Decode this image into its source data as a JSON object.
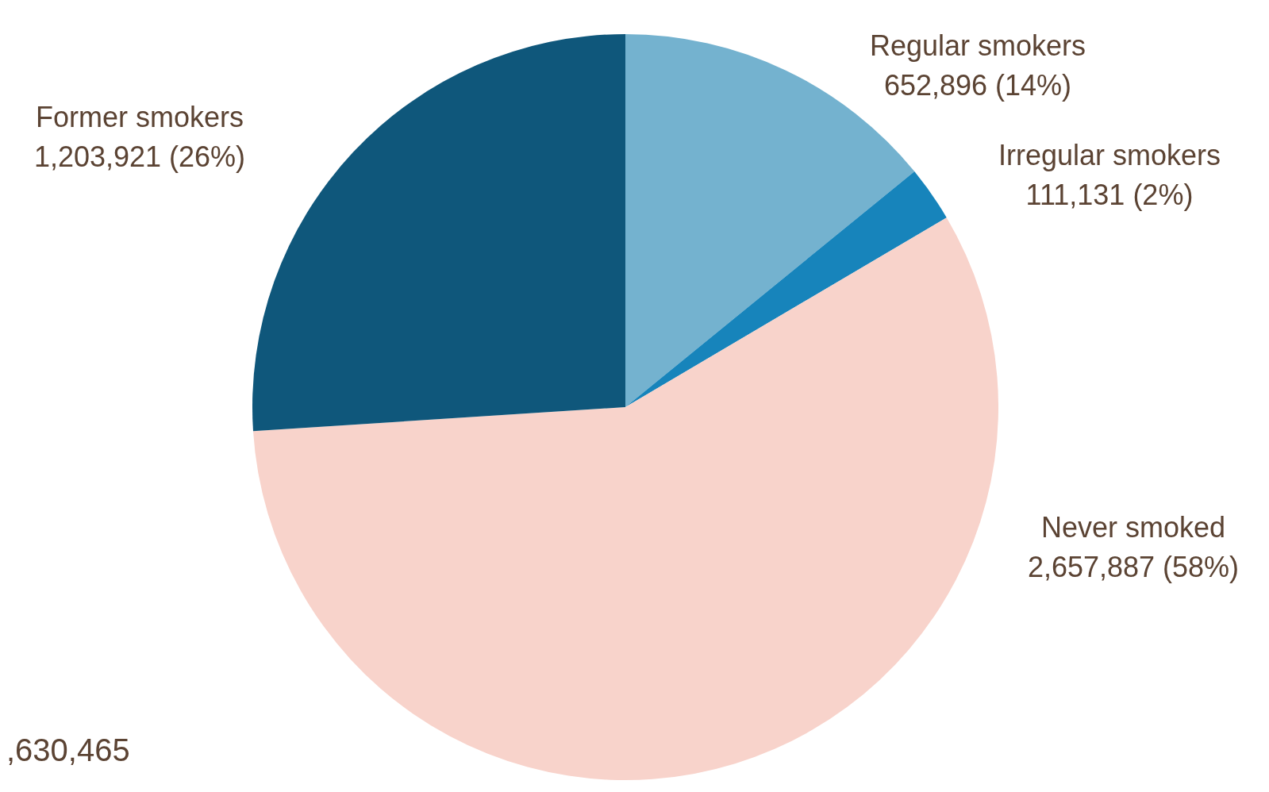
{
  "chart_data": {
    "type": "pie",
    "categories": [
      "Regular smokers",
      "Irregular smokers",
      "Never smoked",
      "Former smokers"
    ],
    "values": [
      652896,
      111131,
      2657887,
      1203921
    ],
    "value_labels": [
      "652,896 (14%)",
      "111,131 (2%)",
      "2,657,887 (58%)",
      "1,203,921 (26%)"
    ],
    "colors": [
      "#74b2cf",
      "#1784bb",
      "#f8d3cb",
      "#0f577b"
    ],
    "annotations": [
      ",630,465"
    ],
    "legend": false
  }
}
